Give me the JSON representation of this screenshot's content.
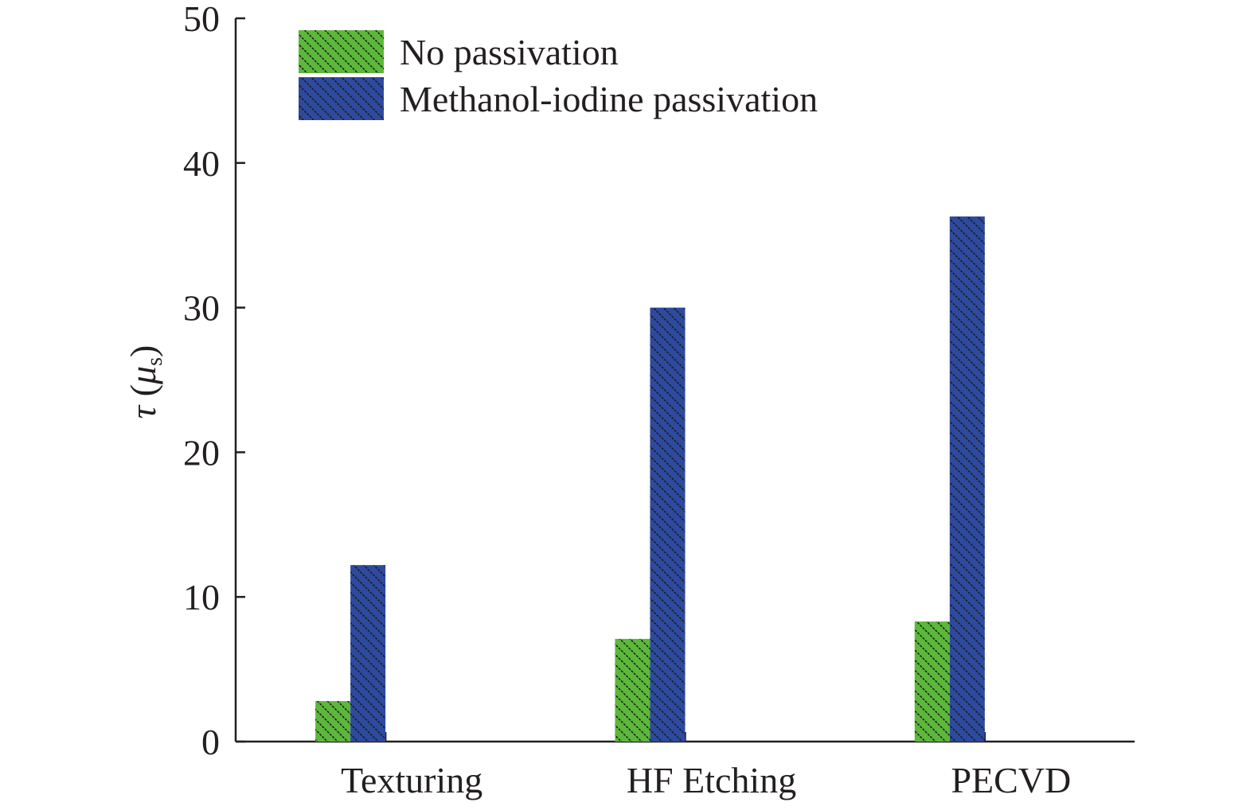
{
  "chart_data": {
    "type": "bar",
    "categories": [
      "Texturing",
      "HF Etching",
      "PECVD"
    ],
    "series": [
      {
        "name": "No passivation",
        "values": [
          2.8,
          7.1,
          8.3
        ],
        "color": "#5cb83a"
      },
      {
        "name": "Methanol-iodine passivation",
        "values": [
          12.2,
          30.0,
          36.3
        ],
        "color": "#2e4a9e"
      }
    ],
    "ylim": [
      0,
      50
    ],
    "yticks": [
      0,
      10,
      20,
      30,
      40,
      50
    ],
    "ylabel": {
      "symbol": "τ",
      "open": " (",
      "unit": "μ",
      "unit_sub": "s",
      "close": ")"
    },
    "xlabel": "",
    "title": "",
    "legend_position": "top-left",
    "grid": false,
    "bar_pattern": "diagonal-hatch"
  }
}
